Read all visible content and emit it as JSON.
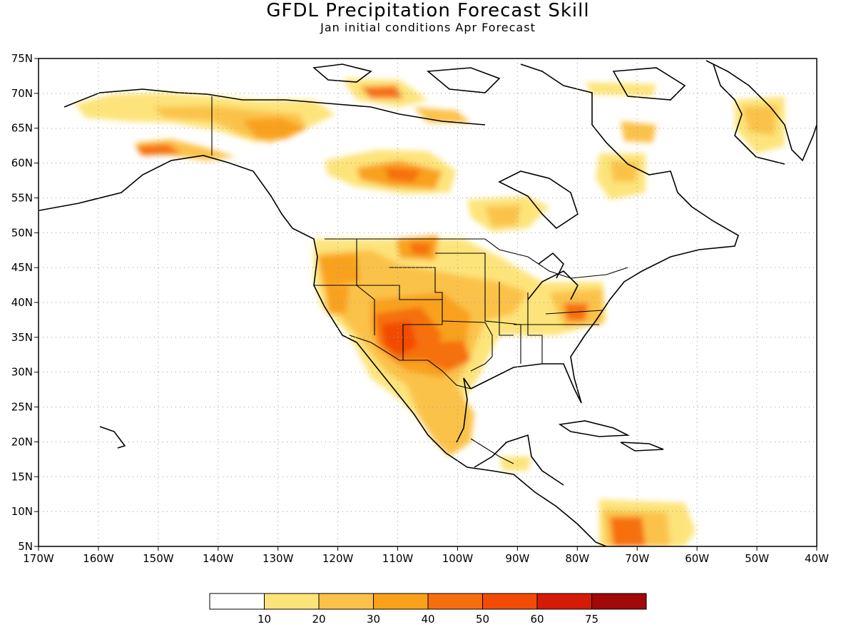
{
  "title": "GFDL Precipitation Forecast Skill",
  "subtitle": "Jan initial conditions  Apr Forecast",
  "map": {
    "lon_range": [
      -170,
      -40
    ],
    "lat_range": [
      5,
      75
    ],
    "lon_ticks": [
      "170W",
      "160W",
      "150W",
      "140W",
      "130W",
      "120W",
      "110W",
      "100W",
      "90W",
      "80W",
      "70W",
      "60W",
      "50W",
      "40W"
    ],
    "lat_ticks": [
      "5N",
      "10N",
      "15N",
      "20N",
      "25N",
      "30N",
      "35N",
      "40N",
      "45N",
      "50N",
      "55N",
      "60N",
      "65N",
      "70N",
      "75N"
    ],
    "grid": "dotted"
  },
  "colorbar": {
    "colors": [
      "#ffffff",
      "#fde47a",
      "#fbc24a",
      "#f9a11b",
      "#f66f0f",
      "#f24b06",
      "#d51a05",
      "#a10808"
    ],
    "labels": [
      "10",
      "20",
      "30",
      "40",
      "50",
      "60",
      "75"
    ]
  },
  "skill_regions": [
    {
      "name": "southwest-us",
      "lon": -109,
      "lat": 34,
      "level": 5
    },
    {
      "name": "texas",
      "lon": -101,
      "lat": 31,
      "level": 4
    },
    {
      "name": "montana",
      "lon": -106,
      "lat": 47,
      "level": 4
    },
    {
      "name": "virginia",
      "lon": -80,
      "lat": 38,
      "level": 4
    },
    {
      "name": "venezuela",
      "lon": -72,
      "lat": 8,
      "level": 4
    },
    {
      "name": "hudson-bay-west",
      "lon": -108,
      "lat": 57,
      "level": 3
    },
    {
      "name": "alaska-south",
      "lon": -149,
      "lat": 61,
      "level": 4
    },
    {
      "name": "arctic-island",
      "lon": -108,
      "lat": 70,
      "level": 5
    },
    {
      "name": "greenland",
      "lon": -50,
      "lat": 66,
      "level": 3
    },
    {
      "name": "california",
      "lon": -119,
      "lat": 40,
      "level": 3
    }
  ]
}
